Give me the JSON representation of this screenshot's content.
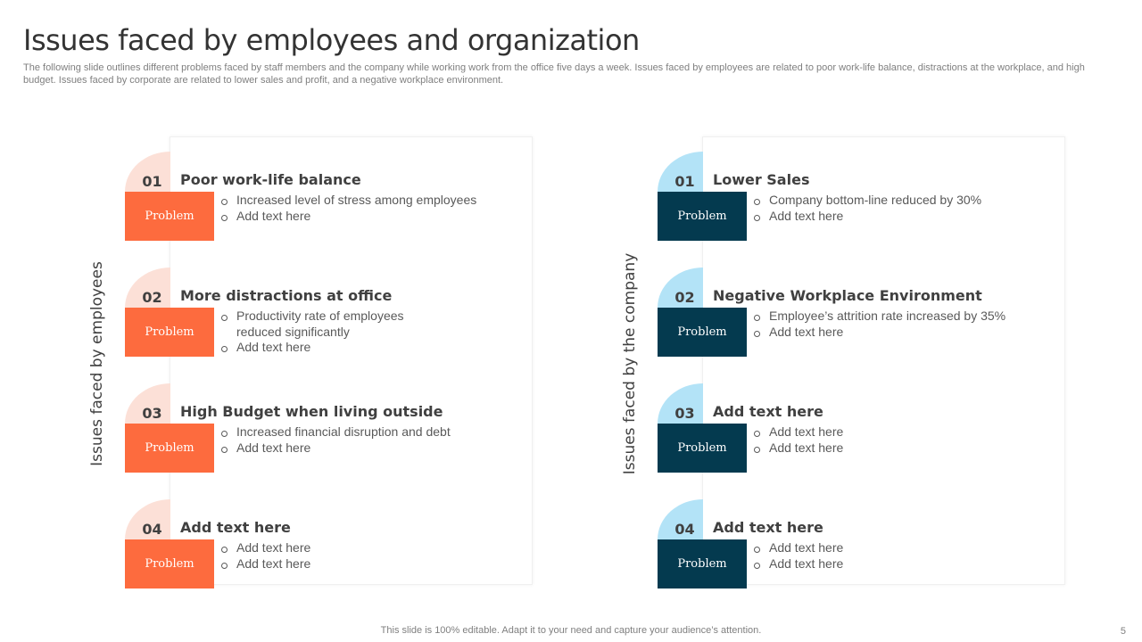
{
  "title": "Issues faced by employees and organization",
  "subtitle": "The following slide outlines different problems faced by staff members and the company while working work from the office five  days a week. Issues faced by employees are related to poor work-life balance, distractions at the workplace, and high budget. Issues faced by corporate are related to lower sales and profit, and a negative workplace environment.",
  "employees": {
    "label": "Issues faced by employees",
    "items": [
      {
        "num": "01",
        "heading": "Poor work-life balance",
        "problem": "Problem",
        "bullets": [
          "Increased level of stress among employees",
          "Add text here"
        ]
      },
      {
        "num": "02",
        "heading": "More distractions at office",
        "problem": "Problem",
        "bullets": [
          "Productivity rate of employees reduced significantly",
          "Add text here"
        ]
      },
      {
        "num": "03",
        "heading": "High Budget when living outside",
        "problem": "Problem",
        "bullets": [
          "Increased financial disruption and debt",
          "Add text here"
        ]
      },
      {
        "num": "04",
        "heading": "Add text here",
        "problem": "Problem",
        "bullets": [
          "Add text here",
          "Add text here"
        ]
      }
    ]
  },
  "company": {
    "label": "Issues faced by the company",
    "items": [
      {
        "num": "01",
        "heading": "Lower Sales",
        "problem": "Problem",
        "bullets": [
          "Company bottom-line reduced by 30%",
          "Add text here"
        ]
      },
      {
        "num": "02",
        "heading": "Negative Workplace Environment",
        "problem": "Problem",
        "bullets": [
          "Employee’s attrition rate increased by 35%",
          "Add text here"
        ]
      },
      {
        "num": "03",
        "heading": "Add text here",
        "problem": "Problem",
        "bullets": [
          "Add text here",
          "Add text here"
        ]
      },
      {
        "num": "04",
        "heading": "Add text here",
        "problem": "Problem",
        "bullets": [
          "Add text here",
          "Add text here"
        ]
      }
    ]
  },
  "footer": "This slide is 100% editable. Adapt it to your need and capture your audience’s attention.",
  "page_number": "5",
  "colors": {
    "orange": "#fd6b3e",
    "orange_light": "#fce0d7",
    "teal": "#043a4f",
    "teal_light": "#b3e3f7"
  }
}
